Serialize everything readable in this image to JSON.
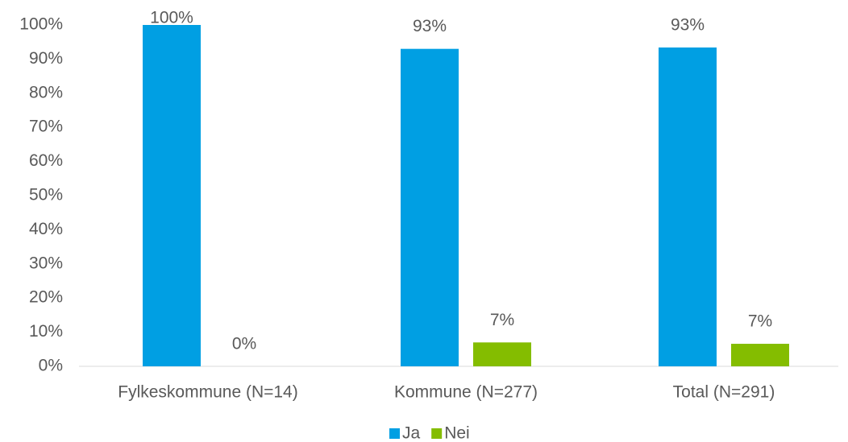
{
  "chart_data": {
    "type": "bar",
    "categories": [
      "Fylkeskommune (N=14)",
      "Kommune (N=277)",
      "Total (N=291)"
    ],
    "series": [
      {
        "name": "Ja",
        "color": "#009fe3",
        "values": [
          100,
          93,
          93.4
        ],
        "value_labels": [
          "100%",
          "93%",
          "93%"
        ]
      },
      {
        "name": "Nei",
        "color": "#84bd00",
        "values": [
          0,
          7,
          6.6
        ],
        "value_labels": [
          "0%",
          "7%",
          "7%"
        ]
      }
    ],
    "ylim": [
      0,
      100
    ],
    "yticks": [
      {
        "value": 0,
        "label": "0%"
      },
      {
        "value": 10,
        "label": "10%"
      },
      {
        "value": 20,
        "label": "20%"
      },
      {
        "value": 30,
        "label": "30%"
      },
      {
        "value": 40,
        "label": "40%"
      },
      {
        "value": 50,
        "label": "50%"
      },
      {
        "value": 60,
        "label": "60%"
      },
      {
        "value": 70,
        "label": "70%"
      },
      {
        "value": 80,
        "label": "80%"
      },
      {
        "value": 90,
        "label": "90%"
      },
      {
        "value": 100,
        "label": "100%"
      }
    ],
    "grid": false,
    "legend": "bottom"
  }
}
